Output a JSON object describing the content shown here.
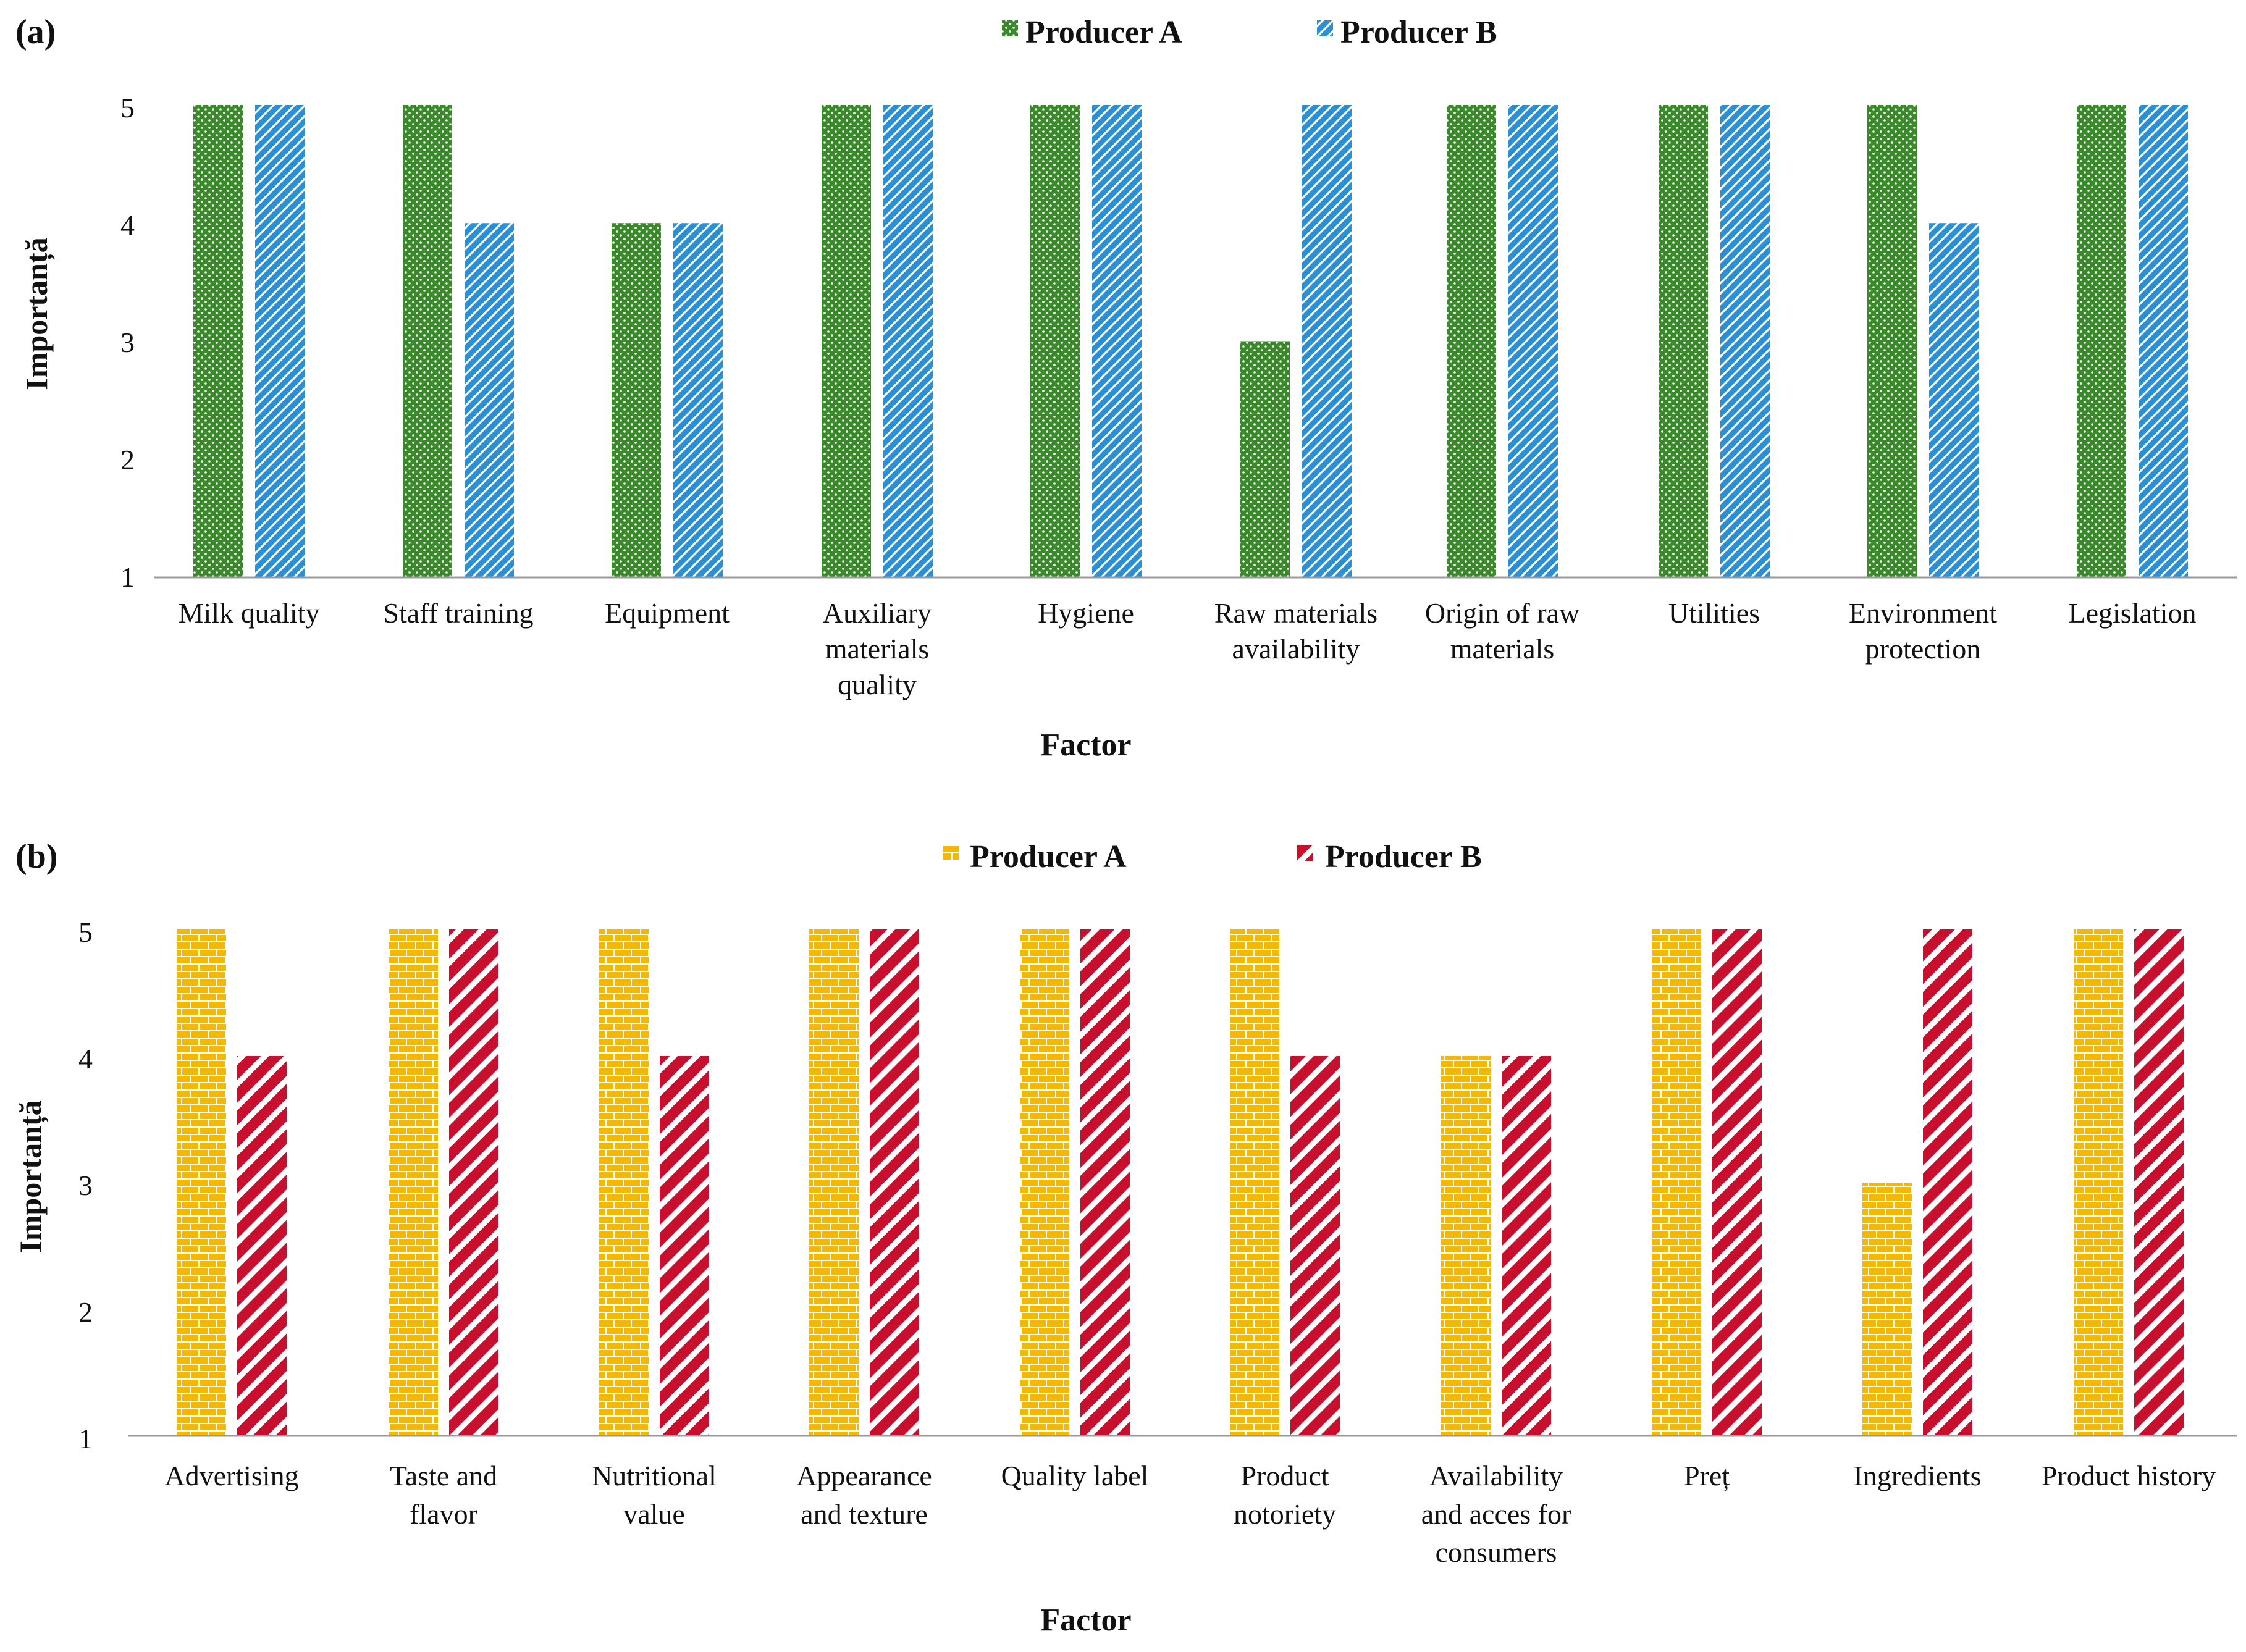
{
  "chart_data": [
    {
      "type": "bar",
      "panel": "(a)",
      "categories": [
        [
          "Milk quality"
        ],
        [
          "Staff training"
        ],
        [
          "Equipment"
        ],
        [
          "Auxiliary",
          "materials",
          "quality"
        ],
        [
          "Hygiene"
        ],
        [
          "Raw materials",
          "availability"
        ],
        [
          "Origin of raw",
          "materials"
        ],
        [
          "Utilities"
        ],
        [
          "Environment",
          "protection"
        ],
        [
          "Legislation"
        ]
      ],
      "series": [
        {
          "name": "Producer A",
          "values": [
            5,
            5,
            4,
            5,
            5,
            3,
            5,
            5,
            5,
            5
          ],
          "color": "#3a8a2c",
          "pattern": "dots"
        },
        {
          "name": "Producer B",
          "values": [
            5,
            4,
            4,
            5,
            5,
            5,
            5,
            5,
            4,
            5
          ],
          "color": "#2b8fd6",
          "pattern": "diagonal"
        }
      ],
      "xlabel": "Factor",
      "ylabel": "Importanță",
      "ylim": [
        1,
        5
      ],
      "yticks": [
        "1",
        "2",
        "3",
        "4",
        "5"
      ],
      "grid": false,
      "legend": "top-center"
    },
    {
      "type": "bar",
      "panel": "(b)",
      "categories": [
        [
          "Advertising"
        ],
        [
          "Taste and",
          "flavor"
        ],
        [
          "Nutritional",
          "value"
        ],
        [
          "Appearance",
          "and texture"
        ],
        [
          "Quality label"
        ],
        [
          "Product",
          "notoriety"
        ],
        [
          "Availability",
          "and acces for",
          "consumers"
        ],
        [
          "Preț"
        ],
        [
          "Ingredients"
        ],
        [
          "Product history"
        ]
      ],
      "series": [
        {
          "name": "Producer A",
          "values": [
            5,
            5,
            5,
            5,
            5,
            5,
            4,
            5,
            3,
            5
          ],
          "color": "#f5b800",
          "pattern": "bricks"
        },
        {
          "name": "Producer B",
          "values": [
            4,
            5,
            4,
            5,
            5,
            4,
            4,
            5,
            5,
            5
          ],
          "color": "#c8102e",
          "pattern": "stripes"
        }
      ],
      "xlabel": "Factor",
      "ylabel": "Importanță",
      "ylim": [
        1,
        5
      ],
      "yticks": [
        "1",
        "2",
        "3",
        "4",
        "5"
      ],
      "grid": false,
      "legend": "top-center"
    }
  ]
}
